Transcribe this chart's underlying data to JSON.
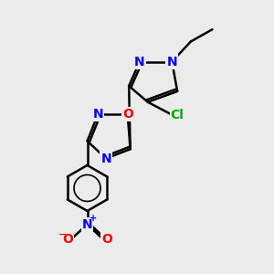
{
  "bg_color": "#ebebeb",
  "bond_color": "#000000",
  "bond_width": 1.8,
  "atom_colors": {
    "N": "#0000ff",
    "O": "#ff0000",
    "Cl": "#00aa00"
  },
  "font_size": 10
}
